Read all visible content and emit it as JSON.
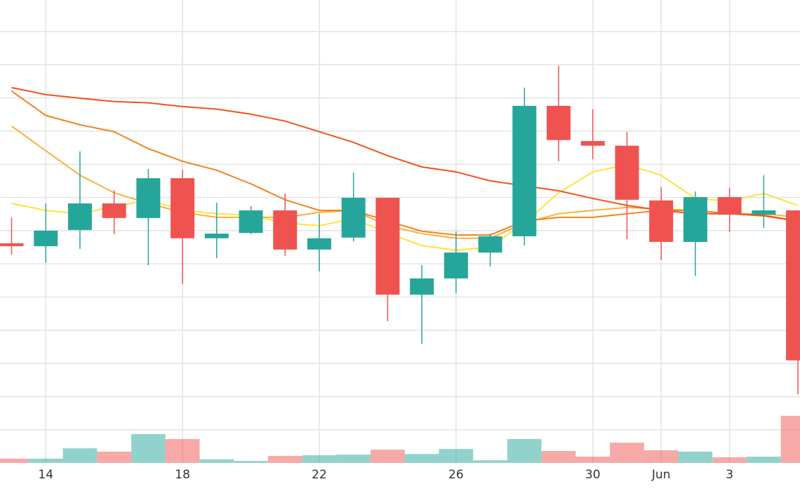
{
  "chart_data": {
    "type": "candlestick",
    "categories": [
      null,
      "14",
      null,
      null,
      null,
      "18",
      null,
      null,
      null,
      "22",
      null,
      null,
      null,
      "26",
      null,
      null,
      null,
      "30",
      null,
      "Jun",
      null,
      "3",
      null,
      null
    ],
    "open": [
      6.62,
      6.53,
      7.02,
      7.82,
      7.38,
      8.58,
      6.77,
      6.93,
      7.61,
      6.43,
      6.79,
      7.99,
      5.07,
      5.56,
      6.34,
      6.83,
      10.76,
      9.7,
      9.56,
      7.91,
      6.66,
      8.01,
      7.48,
      7.61
    ],
    "high": [
      7.4,
      7.82,
      9.39,
      8.22,
      8.86,
      8.84,
      7.84,
      7.74,
      8.12,
      7.51,
      8.75,
      7.99,
      5.96,
      6.98,
      6.91,
      11.31,
      11.97,
      10.66,
      9.98,
      8.31,
      8.18,
      8.29,
      8.67,
      7.61
    ],
    "low": [
      6.28,
      6.03,
      6.45,
      6.89,
      5.96,
      5.39,
      6.17,
      6.89,
      6.24,
      5.77,
      6.68,
      4.27,
      3.59,
      5.12,
      5.92,
      6.55,
      9.09,
      9.15,
      6.74,
      6.11,
      5.64,
      6.96,
      7.08,
      2.07
    ],
    "close": [
      6.53,
      7.0,
      7.82,
      7.38,
      8.58,
      6.77,
      6.91,
      7.61,
      6.43,
      6.77,
      7.99,
      5.07,
      5.56,
      6.34,
      6.83,
      10.76,
      9.73,
      9.56,
      7.93,
      6.66,
      8.01,
      7.48,
      7.61,
      3.09
    ],
    "volume": [
      0.13,
      0.13,
      0.44,
      0.34,
      0.87,
      0.72,
      0.11,
      0.06,
      0.21,
      0.23,
      0.25,
      0.4,
      0.27,
      0.42,
      0.08,
      0.72,
      0.36,
      0.19,
      0.61,
      0.38,
      0.34,
      0.17,
      0.19,
      1.42
    ],
    "up_color": "#26a69a",
    "down_color": "#ef5350",
    "moving_averages": [
      {
        "color": "#ffe23b",
        "values": [
          7.82,
          7.61,
          7.51,
          7.72,
          7.93,
          7.61,
          7.51,
          7.46,
          7.23,
          7.15,
          7.36,
          6.93,
          6.55,
          6.41,
          6.51,
          7.23,
          8.14,
          8.77,
          8.99,
          8.67,
          7.97,
          7.89,
          8.12,
          7.76
        ]
      },
      {
        "color": "#fbb03b",
        "values": [
          10.15,
          9.41,
          8.67,
          8.14,
          7.82,
          7.55,
          7.4,
          7.4,
          7.4,
          7.55,
          7.61,
          7.15,
          6.91,
          6.77,
          6.77,
          7.23,
          7.51,
          7.61,
          7.7,
          7.65,
          7.61,
          7.51,
          7.51,
          7.4
        ]
      },
      {
        "color": "#f58220",
        "values": [
          11.21,
          10.47,
          10.19,
          9.98,
          9.47,
          9.09,
          8.82,
          8.41,
          7.93,
          7.61,
          7.61,
          7.29,
          6.98,
          6.87,
          6.87,
          7.29,
          7.4,
          7.4,
          7.51,
          7.61,
          7.61,
          7.51,
          7.44,
          7.29
        ]
      },
      {
        "color": "#f4511e",
        "values": [
          11.31,
          11.1,
          10.99,
          10.89,
          10.85,
          10.74,
          10.66,
          10.51,
          10.3,
          9.98,
          9.66,
          9.26,
          8.92,
          8.77,
          8.5,
          8.35,
          8.2,
          7.97,
          7.76,
          7.61,
          7.51,
          7.51,
          7.46,
          7.29
        ]
      }
    ],
    "ylim": [
      0,
      13.95
    ],
    "ygrid": [
      1,
      2,
      3,
      4,
      5,
      6,
      7,
      8,
      9,
      10,
      11,
      12,
      13
    ],
    "grid": true
  }
}
